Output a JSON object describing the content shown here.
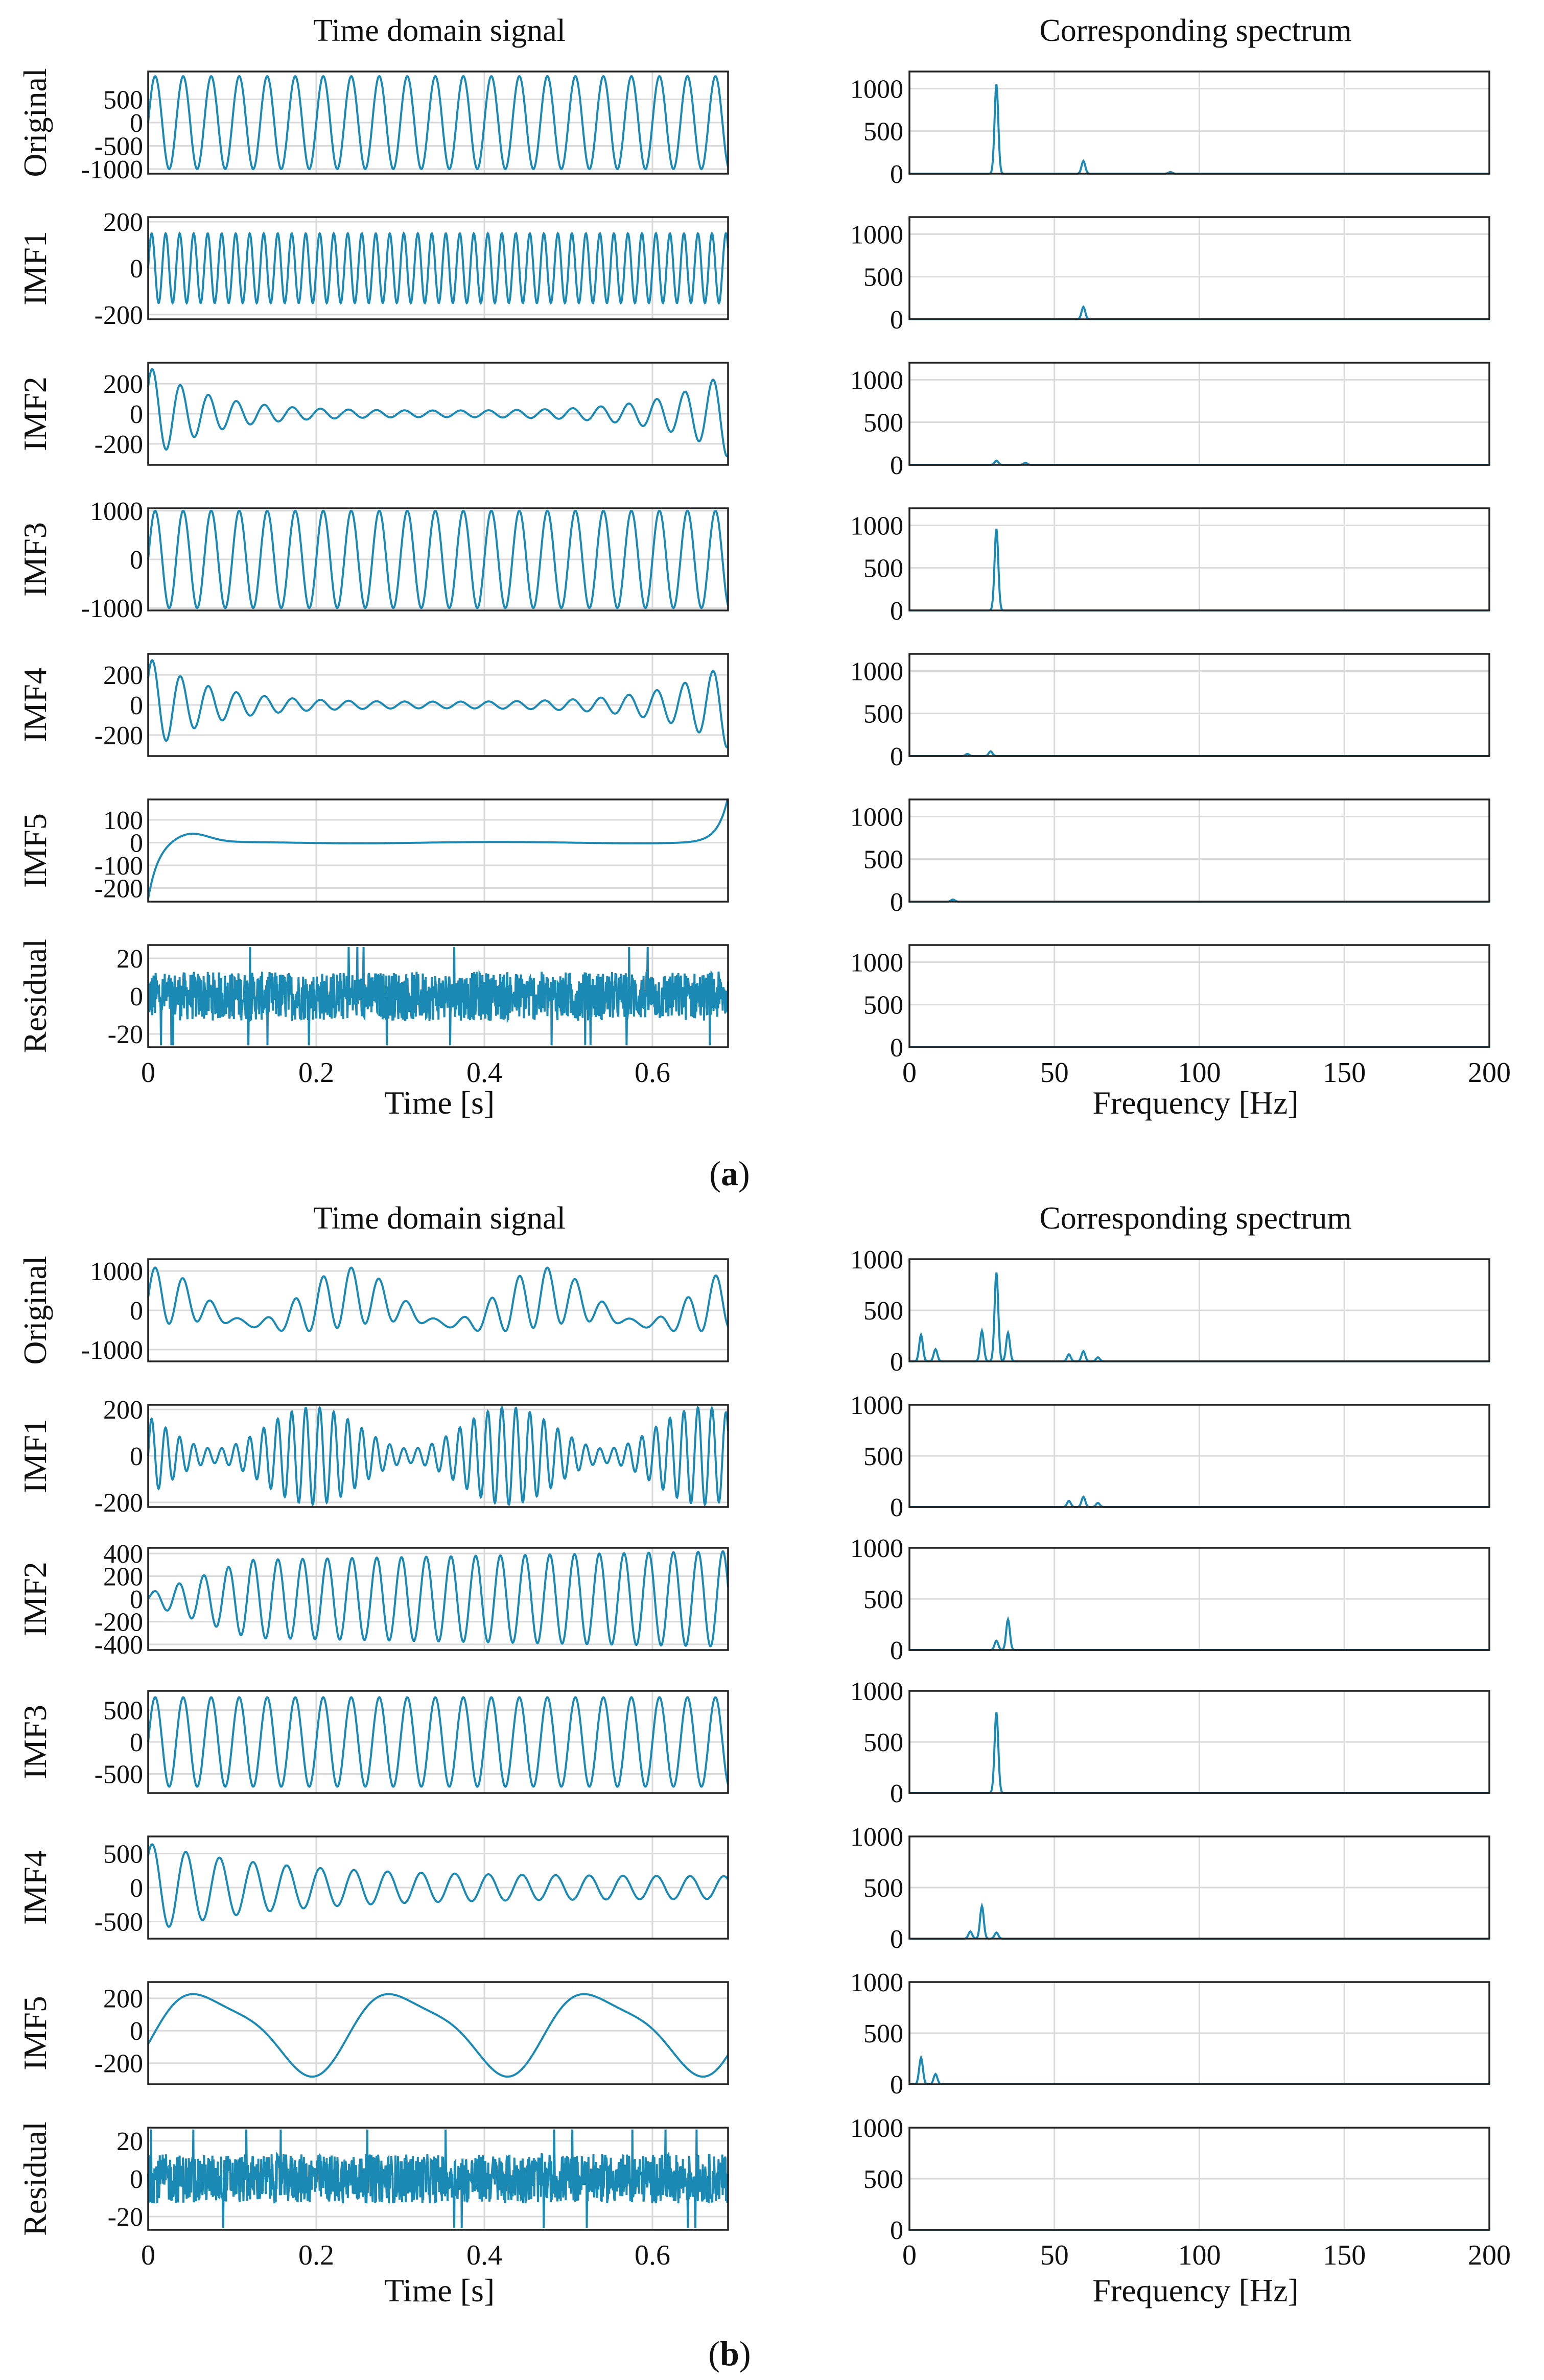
{
  "figure": {
    "color": "#1a8ab4",
    "panels": [
      {
        "label": "a",
        "time_title": "Time domain signal",
        "spec_title": "Corresponding spectrum",
        "time_xlabel": "Time [s]",
        "spec_xlabel": "Frequency [Hz]",
        "time_xlim": [
          0,
          0.69
        ],
        "time_xticks": [
          "0",
          "0.2",
          "0.4",
          "0.6"
        ],
        "spec_xlim": [
          0,
          200
        ],
        "spec_xticks": [
          "0",
          "50",
          "100",
          "150",
          "200"
        ],
        "spec_ylim": [
          0,
          1200
        ],
        "spec_yticks": [
          "0",
          "500",
          "1000"
        ]
      },
      {
        "label": "b",
        "time_title": "Time domain signal",
        "spec_title": "Corresponding spectrum",
        "time_xlabel": "Time [s]",
        "spec_xlabel": "Frequency [Hz]",
        "time_xlim": [
          0,
          0.69
        ],
        "time_xticks": [
          "0",
          "0.2",
          "0.4",
          "0.6"
        ],
        "spec_xlim": [
          0,
          200
        ],
        "spec_xticks": [
          "0",
          "50",
          "100",
          "150",
          "200"
        ],
        "spec_ylim": [
          0,
          1000
        ],
        "spec_yticks": [
          "0",
          "500",
          "1000"
        ]
      }
    ]
  },
  "chart_data": [
    {
      "type": "line",
      "panel": "a",
      "row": "Original",
      "title": "Time domain signal",
      "ylabel": "Original",
      "xlim": [
        0,
        0.69
      ],
      "ylim": [
        -1100,
        1100
      ],
      "yticks": [
        "500",
        "0",
        "-500",
        "-1000"
      ],
      "series": [
        {
          "name": "Original",
          "kind": "sine",
          "freq": 30,
          "amp": 1000
        }
      ]
    },
    {
      "type": "line",
      "panel": "a",
      "row": "Original",
      "title": "Corresponding spectrum",
      "ylabel": "",
      "xlabel": "",
      "xlim": [
        0,
        200
      ],
      "ylim": [
        0,
        1200
      ],
      "peaks": [
        [
          30,
          1050
        ],
        [
          60,
          150
        ],
        [
          90,
          20
        ]
      ]
    },
    {
      "type": "line",
      "panel": "a",
      "row": "IMF1",
      "ylabel": "IMF1",
      "xlim": [
        0,
        0.69
      ],
      "ylim": [
        -220,
        220
      ],
      "yticks": [
        "200",
        "0",
        "-200"
      ],
      "series": [
        {
          "name": "IMF1",
          "kind": "sine",
          "freq": 60,
          "amp": 150
        }
      ]
    },
    {
      "type": "line",
      "panel": "a",
      "row": "IMF1",
      "ylabel": "",
      "xlim": [
        0,
        200
      ],
      "ylim": [
        0,
        1200
      ],
      "peaks": [
        [
          60,
          145
        ]
      ]
    },
    {
      "type": "line",
      "panel": "a",
      "row": "IMF2",
      "ylabel": "IMF2",
      "xlim": [
        0,
        0.69
      ],
      "ylim": [
        -340,
        340
      ],
      "yticks": [
        "200",
        "0",
        "-200"
      ],
      "series": [
        {
          "name": "IMF2",
          "kind": "edge",
          "freq": 30,
          "amp": 300
        }
      ]
    },
    {
      "type": "line",
      "panel": "a",
      "row": "IMF2",
      "ylabel": "",
      "xlim": [
        0,
        200
      ],
      "ylim": [
        0,
        1200
      ],
      "peaks": [
        [
          30,
          50
        ],
        [
          40,
          25
        ]
      ]
    },
    {
      "type": "line",
      "panel": "a",
      "row": "IMF3",
      "ylabel": "IMF3",
      "xlim": [
        0,
        0.69
      ],
      "ylim": [
        -1050,
        1050
      ],
      "yticks": [
        "1000",
        "0",
        "-1000"
      ],
      "series": [
        {
          "name": "IMF3",
          "kind": "sine",
          "freq": 30,
          "amp": 1000
        }
      ]
    },
    {
      "type": "line",
      "panel": "a",
      "row": "IMF3",
      "ylabel": "",
      "xlim": [
        0,
        200
      ],
      "ylim": [
        0,
        1200
      ],
      "peaks": [
        [
          30,
          960
        ]
      ]
    },
    {
      "type": "line",
      "panel": "a",
      "row": "IMF4",
      "ylabel": "IMF4",
      "xlim": [
        0,
        0.69
      ],
      "ylim": [
        -340,
        340
      ],
      "yticks": [
        "200",
        "0",
        "-200"
      ],
      "series": [
        {
          "name": "IMF4",
          "kind": "edge",
          "freq": 30,
          "amp": 300
        }
      ]
    },
    {
      "type": "line",
      "panel": "a",
      "row": "IMF4",
      "ylabel": "",
      "xlim": [
        0,
        200
      ],
      "ylim": [
        0,
        1200
      ],
      "peaks": [
        [
          28,
          55
        ],
        [
          20,
          25
        ]
      ]
    },
    {
      "type": "line",
      "panel": "a",
      "row": "IMF5",
      "ylabel": "IMF5",
      "xlim": [
        0,
        0.69
      ],
      "ylim": [
        -260,
        190
      ],
      "yticks": [
        "100",
        "0",
        "-100",
        "-200"
      ],
      "series": [
        {
          "name": "IMF5",
          "kind": "trend",
          "start": -250,
          "bump": 40,
          "end": 200
        }
      ]
    },
    {
      "type": "line",
      "panel": "a",
      "row": "IMF5",
      "ylabel": "",
      "xlim": [
        0,
        200
      ],
      "ylim": [
        0,
        1200
      ],
      "peaks": [
        [
          15,
          25
        ]
      ]
    },
    {
      "type": "line",
      "panel": "a",
      "row": "Residual",
      "ylabel": "Residual",
      "xlabel": "Time [s]",
      "xlim": [
        0,
        0.69
      ],
      "ylim": [
        -27,
        27
      ],
      "yticks": [
        "20",
        "0",
        "-20"
      ],
      "series": [
        {
          "name": "Residual",
          "kind": "noise",
          "amp": 20
        }
      ]
    },
    {
      "type": "line",
      "panel": "a",
      "row": "Residual",
      "ylabel": "",
      "xlabel": "Frequency [Hz]",
      "xlim": [
        0,
        200
      ],
      "ylim": [
        0,
        1200
      ],
      "peaks": []
    },
    {
      "type": "line",
      "panel": "b",
      "row": "Original",
      "title": "Time domain signal",
      "ylabel": "Original",
      "xlim": [
        0,
        0.69
      ],
      "ylim": [
        -1300,
        1300
      ],
      "yticks": [
        "1000",
        "0",
        "-1000"
      ],
      "series": [
        {
          "name": "Original",
          "kind": "multi",
          "freq": 30,
          "amp": 1000
        }
      ]
    },
    {
      "type": "line",
      "panel": "b",
      "row": "Original",
      "title": "Corresponding spectrum",
      "ylabel": "",
      "xlim": [
        0,
        200
      ],
      "ylim": [
        0,
        1000
      ],
      "peaks": [
        [
          4,
          260
        ],
        [
          9,
          120
        ],
        [
          25,
          300
        ],
        [
          30,
          870
        ],
        [
          34,
          280
        ],
        [
          60,
          100
        ],
        [
          55,
          70
        ],
        [
          65,
          40
        ]
      ]
    },
    {
      "type": "line",
      "panel": "b",
      "row": "IMF1",
      "ylabel": "IMF1",
      "xlim": [
        0,
        0.69
      ],
      "ylim": [
        -220,
        220
      ],
      "yticks": [
        "200",
        "0",
        "-200"
      ],
      "series": [
        {
          "name": "IMF1",
          "kind": "beat",
          "freq": 60,
          "amp": 210
        }
      ]
    },
    {
      "type": "line",
      "panel": "b",
      "row": "IMF1",
      "ylabel": "",
      "xlim": [
        0,
        200
      ],
      "ylim": [
        0,
        1000
      ],
      "peaks": [
        [
          55,
          60
        ],
        [
          60,
          100
        ],
        [
          65,
          40
        ]
      ]
    },
    {
      "type": "line",
      "panel": "b",
      "row": "IMF2",
      "ylabel": "IMF2",
      "xlim": [
        0,
        0.69
      ],
      "ylim": [
        -450,
        450
      ],
      "yticks": [
        "400",
        "200",
        "0",
        "-200",
        "-400"
      ],
      "series": [
        {
          "name": "IMF2",
          "kind": "grow",
          "freq": 34,
          "amp": 420
        }
      ]
    },
    {
      "type": "line",
      "panel": "b",
      "row": "IMF2",
      "ylabel": "",
      "xlim": [
        0,
        200
      ],
      "ylim": [
        0,
        1000
      ],
      "peaks": [
        [
          30,
          90
        ],
        [
          34,
          300
        ]
      ]
    },
    {
      "type": "line",
      "panel": "b",
      "row": "IMF3",
      "ylabel": "IMF3",
      "xlim": [
        0,
        0.69
      ],
      "ylim": [
        -800,
        800
      ],
      "yticks": [
        "500",
        "0",
        "-500"
      ],
      "series": [
        {
          "name": "IMF3",
          "kind": "sine",
          "freq": 30,
          "amp": 700
        }
      ]
    },
    {
      "type": "line",
      "panel": "b",
      "row": "IMF3",
      "ylabel": "",
      "xlim": [
        0,
        200
      ],
      "ylim": [
        0,
        1000
      ],
      "peaks": [
        [
          30,
          790
        ]
      ]
    },
    {
      "type": "line",
      "panel": "b",
      "row": "IMF4",
      "ylabel": "IMF4",
      "xlim": [
        0,
        0.69
      ],
      "ylim": [
        -750,
        750
      ],
      "yticks": [
        "500",
        "0",
        "-500"
      ],
      "series": [
        {
          "name": "IMF4",
          "kind": "decay",
          "freq": 25,
          "amp": 650
        }
      ]
    },
    {
      "type": "line",
      "panel": "b",
      "row": "IMF4",
      "ylabel": "",
      "xlim": [
        0,
        200
      ],
      "ylim": [
        0,
        1000
      ],
      "peaks": [
        [
          21,
          70
        ],
        [
          25,
          320
        ],
        [
          30,
          60
        ]
      ]
    },
    {
      "type": "line",
      "panel": "b",
      "row": "IMF5",
      "ylabel": "IMF5",
      "xlim": [
        0,
        0.69
      ],
      "ylim": [
        -330,
        300
      ],
      "yticks": [
        "200",
        "0",
        "-200"
      ],
      "series": [
        {
          "name": "IMF5",
          "kind": "slow",
          "freq": 4.3,
          "amp": 280
        }
      ]
    },
    {
      "type": "line",
      "panel": "b",
      "row": "IMF5",
      "ylabel": "",
      "xlim": [
        0,
        200
      ],
      "ylim": [
        0,
        1000
      ],
      "peaks": [
        [
          4,
          260
        ],
        [
          9,
          100
        ]
      ]
    },
    {
      "type": "line",
      "panel": "b",
      "row": "Residual",
      "ylabel": "Residual",
      "xlabel": "Time [s]",
      "xlim": [
        0,
        0.69
      ],
      "ylim": [
        -27,
        27
      ],
      "yticks": [
        "20",
        "0",
        "-20"
      ],
      "series": [
        {
          "name": "Residual",
          "kind": "noise",
          "amp": 20
        }
      ]
    },
    {
      "type": "line",
      "panel": "b",
      "row": "Residual",
      "ylabel": "",
      "xlabel": "Frequency [Hz]",
      "xlim": [
        0,
        200
      ],
      "ylim": [
        0,
        1000
      ],
      "peaks": []
    }
  ]
}
